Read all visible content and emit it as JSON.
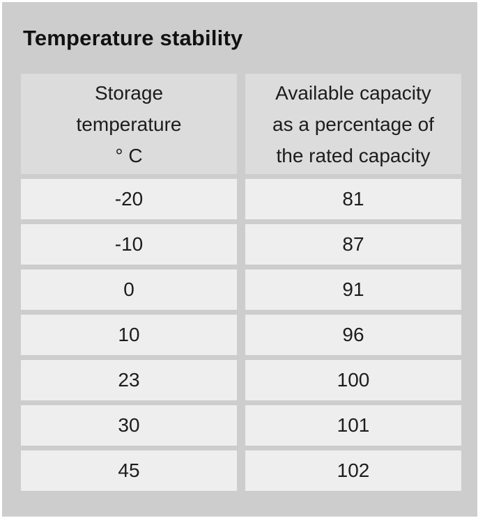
{
  "title": "Temperature stability",
  "table": {
    "headers": [
      "Storage\ntemperature\n° C",
      "Available capacity\nas a percentage of\nthe rated capacity"
    ],
    "rows": [
      [
        "-20",
        "81"
      ],
      [
        "-10",
        "87"
      ],
      [
        "0",
        "91"
      ],
      [
        "10",
        "96"
      ],
      [
        "23",
        "100"
      ],
      [
        "30",
        "101"
      ],
      [
        "45",
        "102"
      ]
    ]
  },
  "colors": {
    "panel_background": "#cdcdcd",
    "header_cell": "#dcdcdc",
    "data_cell": "#eeeeee",
    "text": "#111111"
  }
}
